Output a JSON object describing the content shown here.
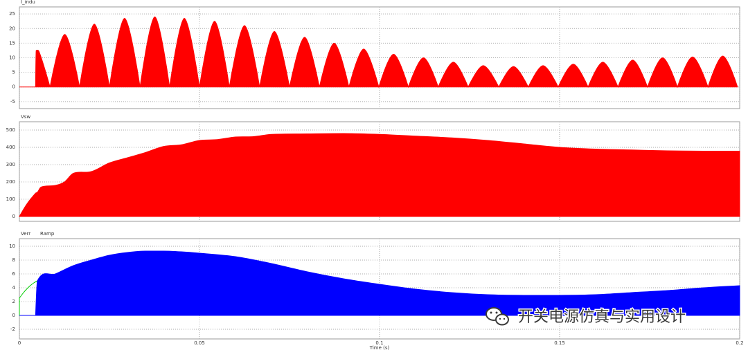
{
  "chart_data": [
    {
      "type": "area",
      "series": [
        {
          "name": "I_indu",
          "color": "#ff0000",
          "x": [
            0,
            0.0045,
            0.0046,
            0.0055,
            0.0085,
            0.0126,
            0.0167,
            0.0208,
            0.025,
            0.0292,
            0.0335,
            0.0376,
            0.0417,
            0.0458,
            0.05,
            0.0542,
            0.0583,
            0.0625,
            0.0667,
            0.0708,
            0.075,
            0.0792,
            0.0833,
            0.0874,
            0.0915,
            0.0956,
            0.0998,
            0.1039,
            0.108,
            0.1122,
            0.1163,
            0.1205,
            0.1246,
            0.1288,
            0.1331,
            0.1372,
            0.1413,
            0.1454,
            0.1496,
            0.1538,
            0.1579,
            0.162,
            0.1662,
            0.1703,
            0.1744,
            0.1786,
            0.1827,
            0.1869,
            0.1912,
            0.1953,
            0.1994
          ],
          "values": [
            0,
            0,
            12.5,
            12,
            0,
            18,
            0,
            21.5,
            0,
            23.5,
            0,
            24,
            0,
            23.5,
            0,
            22.5,
            0,
            21,
            0,
            19,
            0,
            17,
            0,
            15,
            0,
            13,
            0,
            11.2,
            0,
            10,
            0,
            8.5,
            0,
            7.3,
            0,
            7,
            0,
            7.3,
            0,
            7.8,
            0,
            8.5,
            0,
            9.2,
            0,
            10,
            0,
            10.3,
            0,
            10.6,
            0
          ]
        }
      ],
      "xlim": [
        0,
        0.2
      ],
      "xticks": [
        0,
        0.05,
        0.1,
        0.15,
        0.2
      ],
      "ylim": [
        -7.4,
        27.4
      ],
      "yticks": [
        -5,
        0,
        5,
        10,
        15,
        20,
        25
      ],
      "grid": true
    },
    {
      "type": "area",
      "series": [
        {
          "name": "Vsw",
          "color": "#ff0000",
          "x": [
            0,
            0.002,
            0.0045,
            0.005,
            0.006,
            0.01,
            0.0125,
            0.015,
            0.02,
            0.025,
            0.03,
            0.035,
            0.04,
            0.045,
            0.05,
            0.055,
            0.06,
            0.065,
            0.07,
            0.08,
            0.09,
            0.1,
            0.11,
            0.12,
            0.13,
            0.14,
            0.15,
            0.16,
            0.17,
            0.18,
            0.19,
            0.2
          ],
          "values": [
            0,
            70,
            135,
            140,
            170,
            180,
            200,
            250,
            260,
            310,
            340,
            370,
            405,
            415,
            440,
            445,
            460,
            462,
            475,
            478,
            480,
            475,
            465,
            455,
            440,
            420,
            400,
            390,
            385,
            380,
            378,
            378
          ]
        }
      ],
      "xlim": [
        0,
        0.2
      ],
      "xticks": [
        0,
        0.05,
        0.1,
        0.15,
        0.2
      ],
      "ylim": [
        -28,
        548
      ],
      "yticks": [
        0,
        100,
        200,
        300,
        400,
        500
      ],
      "grid": true
    },
    {
      "type": "area",
      "series": [
        {
          "name": "Verr",
          "color": "#00cc00",
          "x": [
            0,
            0.001,
            0.002,
            0.003,
            0.004,
            0.005
          ],
          "values": [
            2.5,
            3.2,
            3.8,
            4.3,
            4.7,
            5
          ]
        },
        {
          "name": "Ramp",
          "color": "#0000ff",
          "x": [
            0,
            0.0045,
            0.005,
            0.01,
            0.015,
            0.02,
            0.025,
            0.03,
            0.035,
            0.04,
            0.045,
            0.05,
            0.06,
            0.07,
            0.08,
            0.09,
            0.1,
            0.11,
            0.12,
            0.13,
            0.14,
            0.15,
            0.16,
            0.17,
            0.18,
            0.19,
            0.2
          ],
          "values": [
            0,
            0,
            5,
            6,
            7.2,
            8,
            8.7,
            9.1,
            9.3,
            9.3,
            9.2,
            9,
            8.5,
            7.5,
            6.3,
            5.3,
            4.5,
            3.8,
            3.3,
            3,
            2.9,
            2.9,
            3,
            3.3,
            3.6,
            4,
            4.3
          ]
        }
      ],
      "xlim": [
        0,
        0.2
      ],
      "xticks": [
        0,
        0.05,
        0.1,
        0.15,
        0.2
      ],
      "xlabel": "Time (s)",
      "ylim": [
        -3.4,
        11.1
      ],
      "yticks": [
        -2,
        0,
        2,
        4,
        6,
        8,
        10
      ],
      "grid": true
    }
  ],
  "watermark": "开关电源仿真与实用设计"
}
